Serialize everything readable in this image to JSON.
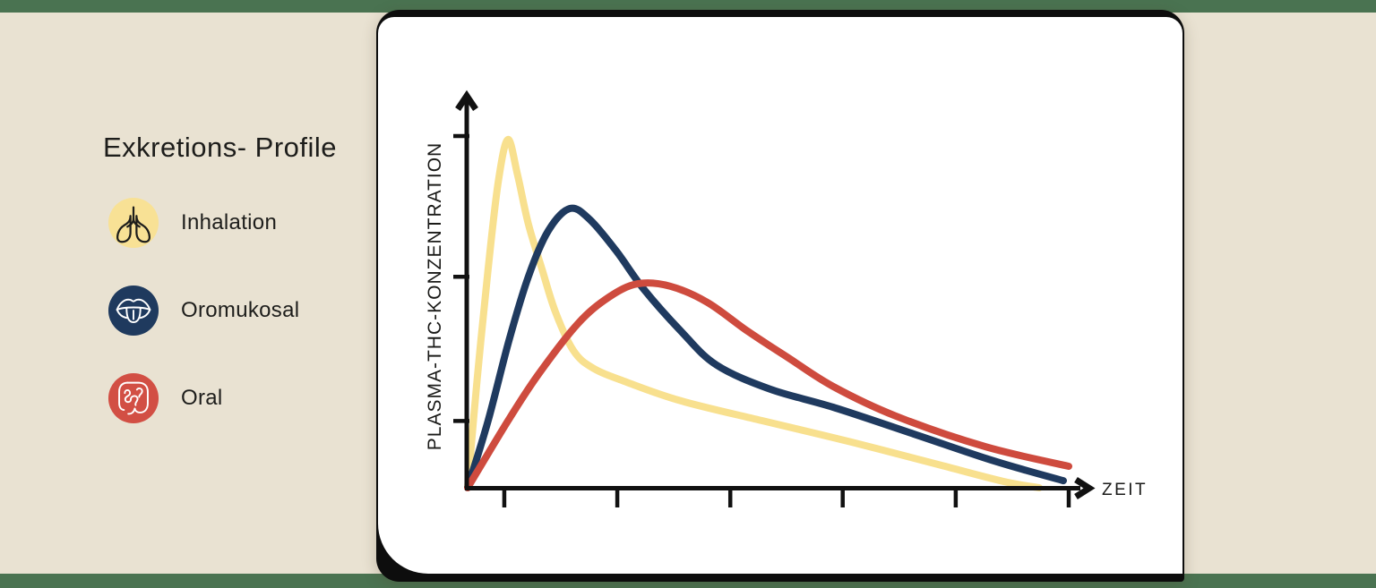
{
  "page": {
    "background": "#E9E2D2",
    "strip_color": "#4A7351",
    "card_color": "#FFFFFF",
    "frame_color": "#0D0D0D",
    "text_color": "#1D1D1B"
  },
  "legend": {
    "title": "Exkretions- Profile",
    "items": [
      {
        "label": "Inhalation",
        "icon": "lungs-icon",
        "color": "#F8E195"
      },
      {
        "label": "Oromukosal",
        "icon": "tongue-icon",
        "color": "#1F3A5E"
      },
      {
        "label": "Oral",
        "icon": "intestine-icon",
        "color": "#D24F44"
      }
    ]
  },
  "chart_data": {
    "type": "line",
    "title": "",
    "xlabel": "ZEIT",
    "ylabel": "PLASMA-THC-KONZENTRATION",
    "grid": false,
    "legend_position": "outside-left",
    "x_axis": {
      "range": [
        0,
        1
      ],
      "tick_positions": [
        0.061,
        0.249,
        0.437,
        0.624,
        0.812,
        1.0
      ],
      "tick_labels": []
    },
    "y_axis": {
      "range": [
        0,
        1
      ],
      "tick_positions": [
        0.19,
        0.6,
        1.0
      ],
      "tick_labels": []
    },
    "series": [
      {
        "name": "Inhalation",
        "color": "#F8E08E",
        "points": [
          [
            0,
            0
          ],
          [
            0.016,
            0.31
          ],
          [
            0.034,
            0.62
          ],
          [
            0.051,
            0.87
          ],
          [
            0.067,
            0.99
          ],
          [
            0.083,
            0.89
          ],
          [
            0.101,
            0.75
          ],
          [
            0.124,
            0.62
          ],
          [
            0.146,
            0.5
          ],
          [
            0.176,
            0.39
          ],
          [
            0.209,
            0.34
          ],
          [
            0.265,
            0.3
          ],
          [
            0.355,
            0.247
          ],
          [
            0.489,
            0.191
          ],
          [
            0.638,
            0.13
          ],
          [
            0.787,
            0.064
          ],
          [
            0.891,
            0.018
          ],
          [
            0.951,
            0.0
          ]
        ]
      },
      {
        "name": "Oromukosal",
        "color": "#1F3A5F",
        "points": [
          [
            0,
            0
          ],
          [
            0.034,
            0.19
          ],
          [
            0.069,
            0.42
          ],
          [
            0.101,
            0.6
          ],
          [
            0.134,
            0.73
          ],
          [
            0.17,
            0.794
          ],
          [
            0.203,
            0.763
          ],
          [
            0.247,
            0.674
          ],
          [
            0.292,
            0.567
          ],
          [
            0.355,
            0.445
          ],
          [
            0.414,
            0.349
          ],
          [
            0.504,
            0.28
          ],
          [
            0.608,
            0.229
          ],
          [
            0.742,
            0.153
          ],
          [
            0.876,
            0.076
          ],
          [
            0.991,
            0.02
          ]
        ]
      },
      {
        "name": "Oral",
        "color": "#CE4B3E",
        "points": [
          [
            0,
            0
          ],
          [
            0.067,
            0.19
          ],
          [
            0.116,
            0.318
          ],
          [
            0.183,
            0.466
          ],
          [
            0.235,
            0.542
          ],
          [
            0.283,
            0.58
          ],
          [
            0.337,
            0.573
          ],
          [
            0.399,
            0.527
          ],
          [
            0.466,
            0.445
          ],
          [
            0.534,
            0.369
          ],
          [
            0.608,
            0.288
          ],
          [
            0.712,
            0.204
          ],
          [
            0.861,
            0.117
          ],
          [
            1.0,
            0.061
          ]
        ]
      }
    ]
  }
}
